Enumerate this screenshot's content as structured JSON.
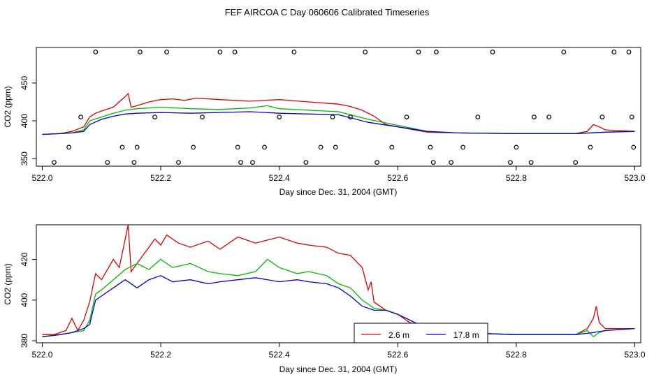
{
  "page_title": "FEF AIRCOA C  Day 060606  Calibrated Timeseries",
  "colors": {
    "red": "#dd0000",
    "green": "#00bb00",
    "blue": "#0000cc",
    "black": "#000000"
  },
  "chart_data": [
    {
      "id": "top",
      "type": "line",
      "xlabel": "Day since Dec. 31, 2004 (GMT)",
      "ylabel": "CO2 (ppm)",
      "xlim": [
        521.99,
        523.01
      ],
      "ylim": [
        340,
        497
      ],
      "x_ticks": [
        522.0,
        522.2,
        522.4,
        522.6,
        522.8,
        523.0
      ],
      "x_tick_labels": [
        "522.0",
        "522.2",
        "522.4",
        "522.6",
        "522.8",
        "523.0"
      ],
      "y_ticks": [
        350,
        400,
        450
      ],
      "y_tick_labels": [
        "350",
        "400",
        "450"
      ],
      "series": [
        {
          "name": "red",
          "color": "#dd0000",
          "x": [
            522.0,
            522.03,
            522.05,
            522.07,
            522.08,
            522.09,
            522.1,
            522.12,
            522.14,
            522.145,
            522.15,
            522.16,
            522.18,
            522.2,
            522.22,
            522.24,
            522.26,
            522.3,
            522.35,
            522.4,
            522.45,
            522.5,
            522.52,
            522.54,
            522.56,
            522.58,
            522.62,
            522.65,
            522.7,
            522.8,
            522.9,
            522.92,
            522.93,
            522.94,
            522.95,
            523.0
          ],
          "y": [
            382,
            383,
            386,
            392,
            405,
            410,
            413,
            418,
            432,
            436,
            418,
            420,
            425,
            428,
            429,
            427,
            430,
            428,
            426,
            428,
            425,
            422,
            419,
            414,
            406,
            395,
            389,
            385,
            384,
            383,
            383,
            386,
            395,
            392,
            388,
            386
          ]
        },
        {
          "name": "green",
          "color": "#00bb00",
          "x": [
            522.0,
            522.03,
            522.05,
            522.07,
            522.08,
            522.1,
            522.12,
            522.14,
            522.16,
            522.2,
            522.25,
            522.3,
            522.35,
            522.38,
            522.4,
            522.45,
            522.5,
            522.55,
            522.6,
            522.65,
            522.7,
            522.8,
            522.9,
            522.93,
            522.95,
            523.0
          ],
          "y": [
            382,
            383,
            384,
            388,
            400,
            405,
            410,
            414,
            416,
            418,
            416,
            415,
            417,
            420,
            416,
            414,
            412,
            402,
            394,
            386,
            384,
            383,
            383,
            384,
            385,
            386
          ]
        },
        {
          "name": "blue",
          "color": "#0000cc",
          "x": [
            522.0,
            522.03,
            522.05,
            522.07,
            522.08,
            522.1,
            522.12,
            522.14,
            522.16,
            522.2,
            522.25,
            522.3,
            522.35,
            522.4,
            522.45,
            522.5,
            522.55,
            522.6,
            522.65,
            522.7,
            522.8,
            522.9,
            522.95,
            523.0
          ],
          "y": [
            382,
            383,
            384,
            386,
            395,
            402,
            406,
            409,
            410,
            411,
            410,
            411,
            412,
            410,
            409,
            408,
            398,
            392,
            386,
            384,
            383,
            383,
            385,
            386
          ]
        }
      ],
      "scatter": {
        "name": "flags",
        "x": [
          522.02,
          522.045,
          522.065,
          522.09,
          522.11,
          522.135,
          522.155,
          522.16,
          522.165,
          522.19,
          522.21,
          522.23,
          522.255,
          522.27,
          522.3,
          522.325,
          522.33,
          522.335,
          522.355,
          522.375,
          522.4,
          522.425,
          522.445,
          522.47,
          522.49,
          522.495,
          522.52,
          522.545,
          522.565,
          522.59,
          522.615,
          522.635,
          522.655,
          522.66,
          522.665,
          522.69,
          522.71,
          522.735,
          522.76,
          522.79,
          522.8,
          522.825,
          522.83,
          522.855,
          522.88,
          522.9,
          522.925,
          522.945,
          522.965,
          522.99,
          522.995,
          522.998
        ],
        "y": [
          345,
          365,
          405,
          491,
          345,
          365,
          345,
          365,
          491,
          405,
          491,
          345,
          365,
          405,
          491,
          491,
          365,
          345,
          345,
          365,
          405,
          491,
          345,
          365,
          405,
          365,
          405,
          491,
          345,
          365,
          405,
          491,
          365,
          345,
          491,
          345,
          365,
          405,
          491,
          345,
          365,
          345,
          405,
          405,
          491,
          345,
          365,
          405,
          491,
          491,
          405,
          365
        ]
      }
    },
    {
      "id": "bottom",
      "type": "line",
      "xlabel": "Day since Dec. 31, 2004 (GMT)",
      "ylabel": "CO2 (ppm)",
      "xlim": [
        521.99,
        523.01
      ],
      "ylim": [
        379,
        437
      ],
      "x_ticks": [
        522.0,
        522.2,
        522.4,
        522.6,
        522.8,
        523.0
      ],
      "x_tick_labels": [
        "522.0",
        "522.2",
        "522.4",
        "522.6",
        "522.8",
        "523.0"
      ],
      "y_ticks": [
        380,
        400,
        420
      ],
      "y_tick_labels": [
        "380",
        "400",
        "420"
      ],
      "series": [
        {
          "name": "2.6 m",
          "color": "#dd0000",
          "x": [
            522.0,
            522.02,
            522.03,
            522.04,
            522.05,
            522.06,
            522.07,
            522.08,
            522.09,
            522.1,
            522.11,
            522.12,
            522.13,
            522.14,
            522.145,
            522.15,
            522.17,
            522.19,
            522.2,
            522.21,
            522.23,
            522.25,
            522.28,
            522.3,
            522.33,
            522.36,
            522.4,
            522.43,
            522.45,
            522.48,
            522.5,
            522.52,
            522.54,
            522.55,
            522.555,
            522.56,
            522.58,
            522.6,
            522.62,
            522.65,
            522.7,
            522.8,
            522.9,
            522.92,
            522.93,
            522.935,
            522.94,
            522.95,
            523.0
          ],
          "y": [
            383,
            383,
            384,
            385,
            391,
            385,
            390,
            399,
            413,
            410,
            415,
            420,
            416,
            430,
            437,
            414,
            422,
            430,
            427,
            432,
            428,
            426,
            429,
            425,
            431,
            428,
            431,
            428,
            427,
            426,
            423,
            422,
            416,
            405,
            409,
            399,
            395,
            393,
            389,
            385,
            384,
            383,
            383,
            386,
            391,
            397,
            389,
            386,
            386
          ]
        },
        {
          "name": "green",
          "color": "#00bb00",
          "x": [
            522.0,
            522.03,
            522.05,
            522.07,
            522.08,
            522.09,
            522.1,
            522.12,
            522.14,
            522.16,
            522.18,
            522.2,
            522.22,
            522.25,
            522.28,
            522.3,
            522.33,
            522.36,
            522.38,
            522.4,
            522.43,
            522.45,
            522.48,
            522.5,
            522.52,
            522.54,
            522.56,
            522.58,
            522.6,
            522.65,
            522.7,
            522.8,
            522.9,
            522.92,
            522.93,
            522.94,
            522.95,
            523.0
          ],
          "y": [
            382,
            383,
            384,
            385,
            390,
            403,
            405,
            410,
            415,
            418,
            415,
            420,
            416,
            418,
            414,
            413,
            412,
            414,
            420,
            416,
            413,
            414,
            412,
            408,
            406,
            400,
            396,
            395,
            393,
            386,
            384,
            383,
            383,
            385,
            382,
            384,
            385,
            386
          ]
        },
        {
          "name": "17.8 m",
          "color": "#0000cc",
          "x": [
            522.0,
            522.03,
            522.05,
            522.07,
            522.08,
            522.09,
            522.1,
            522.12,
            522.14,
            522.16,
            522.18,
            522.2,
            522.22,
            522.25,
            522.28,
            522.3,
            522.33,
            522.36,
            522.4,
            522.43,
            522.45,
            522.48,
            522.5,
            522.52,
            522.54,
            522.56,
            522.58,
            522.6,
            522.65,
            522.7,
            522.8,
            522.9,
            522.93,
            522.95,
            523.0
          ],
          "y": [
            382,
            383,
            384,
            386,
            388,
            400,
            402,
            406,
            410,
            406,
            410,
            412,
            409,
            410,
            408,
            409,
            410,
            411,
            409,
            410,
            409,
            408,
            406,
            402,
            397,
            395,
            395,
            393,
            386,
            384,
            383,
            383,
            384,
            385,
            386
          ]
        }
      ],
      "legend": {
        "position": "bottom-center",
        "entries": [
          "2.6 m",
          "17.8 m"
        ],
        "colors": [
          "#dd0000",
          "#0000cc"
        ]
      }
    }
  ]
}
